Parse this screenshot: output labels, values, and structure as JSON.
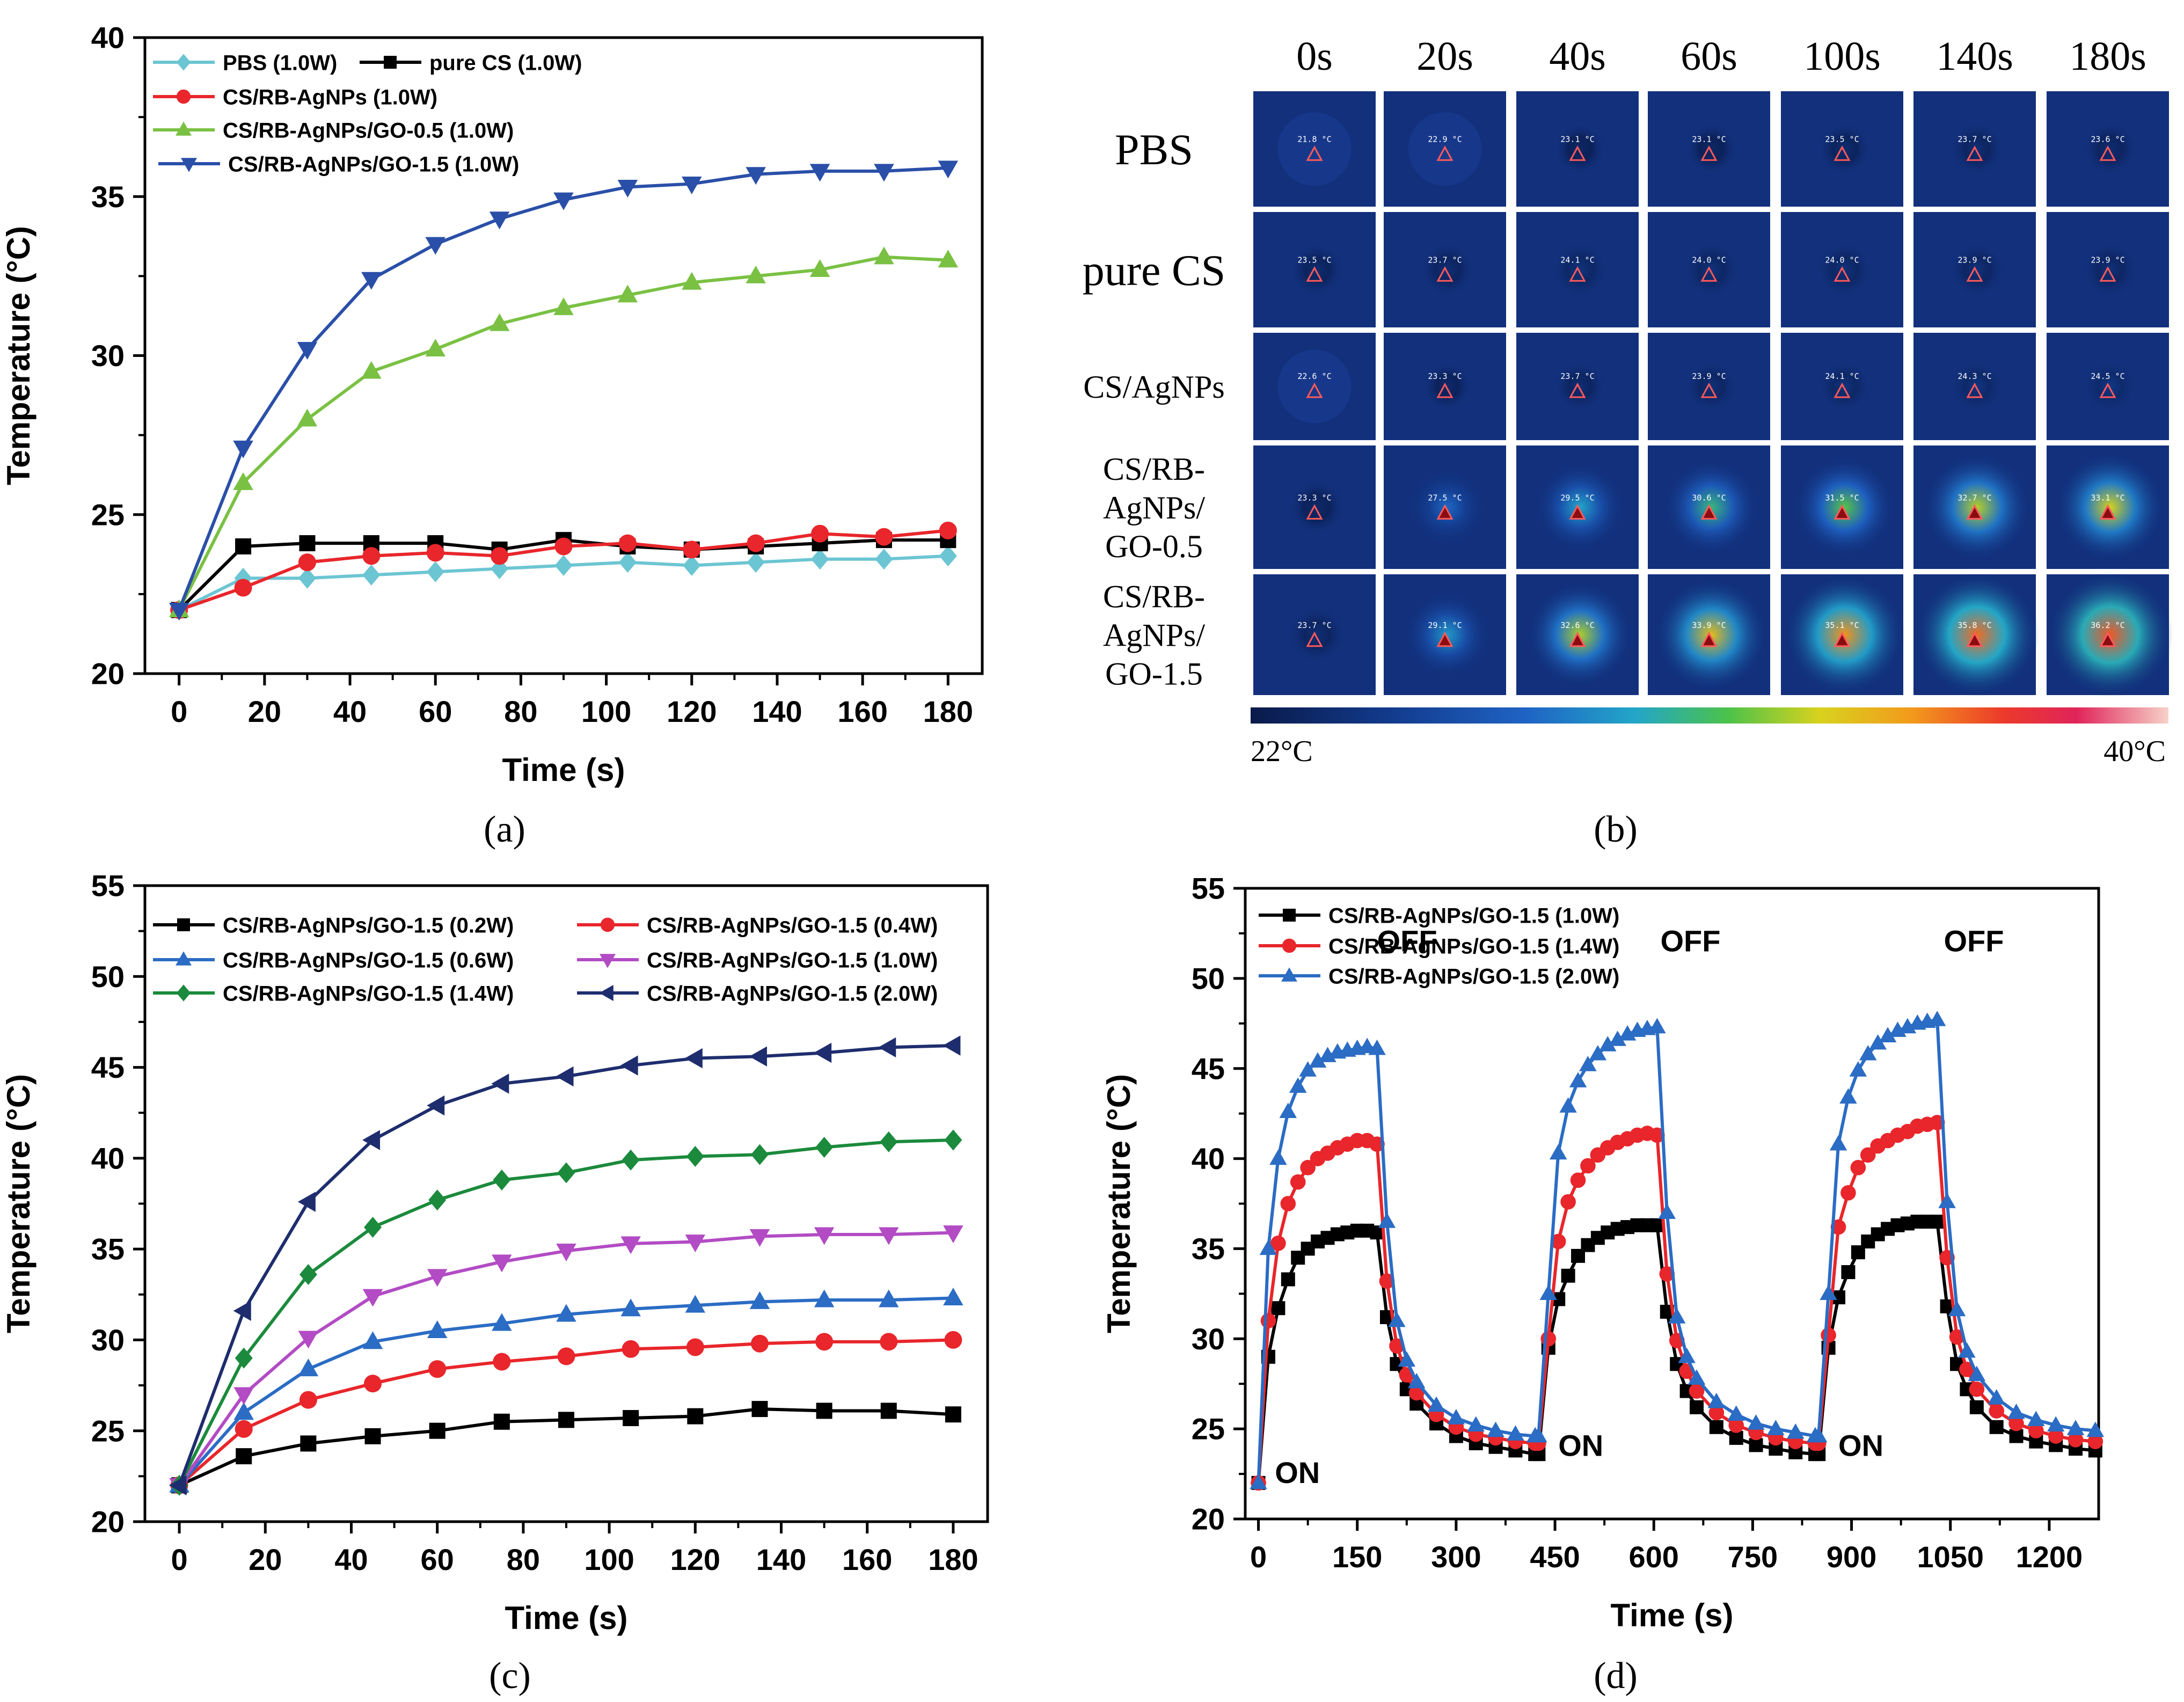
{
  "panels": {
    "a": "(a)",
    "b": "(b)",
    "c": "(c)",
    "d": "(d)"
  },
  "chart_data": [
    {
      "id": "a",
      "type": "line",
      "xlabel": "Time (s)",
      "ylabel": "Temperature (°C)",
      "xlim": [
        -8,
        188
      ],
      "ylim": [
        20,
        40
      ],
      "xticks": [
        0,
        20,
        40,
        60,
        80,
        100,
        120,
        140,
        160,
        180
      ],
      "yticks": [
        20,
        25,
        30,
        35,
        40
      ],
      "legend_position": "top-left",
      "x": [
        0,
        15,
        30,
        45,
        60,
        75,
        90,
        105,
        120,
        135,
        150,
        165,
        180
      ],
      "series": [
        {
          "name": "PBS (1.0W)",
          "color": "#6cc5d3",
          "marker": "diamond",
          "values": [
            22.0,
            23.0,
            23.0,
            23.1,
            23.2,
            23.3,
            23.4,
            23.5,
            23.4,
            23.5,
            23.6,
            23.6,
            23.7
          ]
        },
        {
          "name": "pure CS (1.0W)",
          "color": "#000000",
          "marker": "square",
          "values": [
            22.0,
            24.0,
            24.1,
            24.1,
            24.1,
            23.9,
            24.2,
            24.0,
            23.9,
            24.0,
            24.1,
            24.2,
            24.2
          ]
        },
        {
          "name": "CS/RB-AgNPs  (1.0W)",
          "color": "#e8262b",
          "marker": "circle",
          "values": [
            22.0,
            22.7,
            23.5,
            23.7,
            23.8,
            23.7,
            24.0,
            24.1,
            23.9,
            24.1,
            24.4,
            24.3,
            24.5
          ]
        },
        {
          "name": "CS/RB-AgNPs/GO-0.5 (1.0W)",
          "color": "#7ac143",
          "marker": "triangle-up",
          "values": [
            22.0,
            26.0,
            28.0,
            29.5,
            30.2,
            31.0,
            31.5,
            31.9,
            32.3,
            32.5,
            32.7,
            33.1,
            33.0
          ]
        },
        {
          "name": "CS/RB-AgNPs/GO-1.5 (1.0W)",
          "color": "#2a4fa8",
          "marker": "triangle-down",
          "values": [
            22.0,
            27.1,
            30.2,
            32.4,
            33.5,
            34.3,
            34.9,
            35.3,
            35.4,
            35.7,
            35.8,
            35.8,
            35.9
          ]
        }
      ]
    },
    {
      "id": "c",
      "type": "line",
      "xlabel": "Time (s)",
      "ylabel": "Temperature (°C)",
      "xlim": [
        -8,
        188
      ],
      "ylim": [
        20,
        55
      ],
      "xticks": [
        0,
        20,
        40,
        60,
        80,
        100,
        120,
        140,
        160,
        180
      ],
      "yticks": [
        20,
        25,
        30,
        35,
        40,
        45,
        50,
        55
      ],
      "legend_position": "top",
      "x": [
        0,
        15,
        30,
        45,
        60,
        75,
        90,
        105,
        120,
        135,
        150,
        165,
        180
      ],
      "series": [
        {
          "name": "CS/RB-AgNPs/GO-1.5 (0.2W)",
          "color": "#000000",
          "marker": "square",
          "values": [
            22.0,
            23.6,
            24.3,
            24.7,
            25.0,
            25.5,
            25.6,
            25.7,
            25.8,
            26.2,
            26.1,
            26.1,
            25.9
          ]
        },
        {
          "name": "CS/RB-AgNPs/GO-1.5 (0.4W)",
          "color": "#e8262b",
          "marker": "circle",
          "values": [
            22.0,
            25.1,
            26.7,
            27.6,
            28.4,
            28.8,
            29.1,
            29.5,
            29.6,
            29.8,
            29.9,
            29.9,
            30.0
          ]
        },
        {
          "name": "CS/RB-AgNPs/GO-1.5 (0.6W)",
          "color": "#2b6cc4",
          "marker": "triangle-up",
          "values": [
            22.0,
            26.0,
            28.4,
            29.9,
            30.5,
            30.9,
            31.4,
            31.7,
            31.9,
            32.1,
            32.2,
            32.2,
            32.3
          ]
        },
        {
          "name": "CS/RB-AgNPs/GO-1.5 (1.0W)",
          "color": "#b24bc4",
          "marker": "triangle-down",
          "values": [
            22.0,
            27.0,
            30.1,
            32.4,
            33.5,
            34.3,
            34.9,
            35.3,
            35.4,
            35.7,
            35.8,
            35.8,
            35.9
          ]
        },
        {
          "name": "CS/RB-AgNPs/GO-1.5 (1.4W)",
          "color": "#1b8a3c",
          "marker": "diamond",
          "values": [
            22.0,
            29.0,
            33.6,
            36.2,
            37.7,
            38.8,
            39.2,
            39.9,
            40.1,
            40.2,
            40.6,
            40.9,
            41.0
          ]
        },
        {
          "name": "CS/RB-AgNPs/GO-1.5 (2.0W)",
          "color": "#1e2d6e",
          "marker": "triangle-left",
          "values": [
            22.0,
            31.6,
            37.6,
            41.0,
            42.9,
            44.1,
            44.5,
            45.1,
            45.5,
            45.6,
            45.8,
            46.1,
            46.2
          ]
        }
      ]
    },
    {
      "id": "d",
      "type": "line",
      "xlabel": "Time (s)",
      "ylabel": "Temperature (°C)",
      "xlim": [
        -20,
        1275
      ],
      "ylim": [
        20,
        55
      ],
      "xticks": [
        0,
        150,
        300,
        450,
        600,
        750,
        900,
        1050,
        1200
      ],
      "yticks": [
        20,
        25,
        30,
        35,
        40,
        45,
        50,
        55
      ],
      "legend_position": "top-left",
      "annotations": [
        {
          "text": "ON",
          "x": 25,
          "y": 22.0
        },
        {
          "text": "OFF",
          "x": 180,
          "y": 51.5
        },
        {
          "text": "ON",
          "x": 455,
          "y": 23.5
        },
        {
          "text": "OFF",
          "x": 610,
          "y": 51.5
        },
        {
          "text": "ON",
          "x": 880,
          "y": 23.5
        },
        {
          "text": "OFF",
          "x": 1040,
          "y": 51.5
        }
      ],
      "cycle_x": [
        0,
        15,
        30,
        45,
        60,
        75,
        90,
        105,
        120,
        135,
        150,
        165,
        180,
        195,
        210,
        225,
        240,
        270,
        300,
        330,
        360,
        390,
        420
      ],
      "cycle_offsets": [
        0,
        425,
        850
      ],
      "series": [
        {
          "name": "CS/RB-AgNPs/GO-1.5 (1.0W)",
          "color": "#000000",
          "marker": "square",
          "cycles": [
            [
              22.0,
              29.0,
              31.7,
              33.3,
              34.5,
              35.0,
              35.4,
              35.6,
              35.8,
              35.9,
              36.0,
              36.0,
              35.9,
              31.2,
              28.6,
              27.2,
              26.4,
              25.3,
              24.6,
              24.2,
              24.0,
              23.8,
              23.6
            ],
            [
              23.6,
              29.5,
              32.2,
              33.5,
              34.6,
              35.2,
              35.6,
              35.9,
              36.1,
              36.2,
              36.3,
              36.3,
              36.3,
              31.5,
              28.6,
              27.1,
              26.2,
              25.1,
              24.5,
              24.1,
              23.9,
              23.7,
              23.6
            ],
            [
              23.6,
              29.5,
              32.3,
              33.7,
              34.8,
              35.4,
              35.8,
              36.1,
              36.3,
              36.4,
              36.5,
              36.5,
              36.5,
              31.8,
              28.6,
              27.2,
              26.2,
              25.1,
              24.6,
              24.3,
              24.1,
              23.9,
              23.8
            ]
          ]
        },
        {
          "name": "CS/RB-AgNPs/GO-1.5 (1.4W)",
          "color": "#e8262b",
          "marker": "circle",
          "cycles": [
            [
              22.0,
              31.0,
              35.3,
              37.5,
              38.7,
              39.5,
              40.0,
              40.3,
              40.6,
              40.8,
              41.0,
              41.0,
              40.8,
              33.2,
              29.6,
              28.0,
              27.0,
              25.8,
              25.1,
              24.7,
              24.5,
              24.3,
              24.2
            ],
            [
              24.2,
              30.0,
              35.4,
              37.6,
              38.8,
              39.6,
              40.2,
              40.6,
              40.9,
              41.1,
              41.3,
              41.4,
              41.3,
              33.6,
              29.9,
              28.2,
              27.1,
              25.9,
              25.2,
              24.8,
              24.5,
              24.3,
              24.2
            ],
            [
              24.2,
              30.2,
              36.2,
              38.1,
              39.5,
              40.2,
              40.7,
              41.0,
              41.3,
              41.5,
              41.8,
              41.9,
              42.0,
              34.5,
              30.1,
              28.3,
              27.2,
              26.0,
              25.3,
              24.9,
              24.6,
              24.4,
              24.3
            ]
          ]
        },
        {
          "name": "CS/RB-AgNPs/GO-1.5 (2.0W)",
          "color": "#2b6cc4",
          "marker": "triangle-up",
          "cycles": [
            [
              22.0,
              35.0,
              40.0,
              42.6,
              44.0,
              44.9,
              45.4,
              45.7,
              45.9,
              46.0,
              46.1,
              46.2,
              46.1,
              36.5,
              31.0,
              28.8,
              27.6,
              26.3,
              25.6,
              25.2,
              24.9,
              24.7,
              24.6
            ],
            [
              24.6,
              32.5,
              40.3,
              42.9,
              44.3,
              45.2,
              45.8,
              46.3,
              46.6,
              46.9,
              47.1,
              47.2,
              47.3,
              37.0,
              31.2,
              29.0,
              27.8,
              26.5,
              25.8,
              25.3,
              25.0,
              24.8,
              24.6
            ],
            [
              24.6,
              32.5,
              40.8,
              43.4,
              44.9,
              45.8,
              46.4,
              46.8,
              47.1,
              47.3,
              47.5,
              47.6,
              47.7,
              37.6,
              31.6,
              29.3,
              28.0,
              26.7,
              25.9,
              25.5,
              25.2,
              25.0,
              24.9
            ]
          ]
        }
      ]
    },
    {
      "id": "b",
      "type": "heatmap",
      "title": "",
      "time_labels": [
        "0s",
        "20s",
        "40s",
        "60s",
        "100s",
        "140s",
        "180s"
      ],
      "row_labels": [
        [
          "PBS"
        ],
        [
          "pure CS"
        ],
        [
          "CS/AgNPs"
        ],
        [
          "CS/RB-",
          "AgNPs/",
          "GO-0.5"
        ],
        [
          "CS/RB-",
          "AgNPs/",
          "GO-1.5"
        ]
      ],
      "scale_min_label": "22°C",
      "scale_max_label": "40°C",
      "scale_min": 22,
      "scale_max": 40,
      "cells": [
        [
          {
            "t": 21.8
          },
          {
            "t": 22.9
          },
          {
            "t": 23.1
          },
          {
            "t": 23.1
          },
          {
            "t": 23.5
          },
          {
            "t": 23.7
          },
          {
            "t": 23.6
          }
        ],
        [
          {
            "t": 23.5
          },
          {
            "t": 23.7
          },
          {
            "t": 24.1
          },
          {
            "t": 24.0
          },
          {
            "t": 24.0
          },
          {
            "t": 23.9
          },
          {
            "t": 23.9
          }
        ],
        [
          {
            "t": 22.6
          },
          {
            "t": 23.3
          },
          {
            "t": 23.7
          },
          {
            "t": 23.9
          },
          {
            "t": 24.1
          },
          {
            "t": 24.3
          },
          {
            "t": 24.5
          }
        ],
        [
          {
            "t": 23.3
          },
          {
            "t": 27.5
          },
          {
            "t": 29.5
          },
          {
            "t": 30.6
          },
          {
            "t": 31.5
          },
          {
            "t": 32.7
          },
          {
            "t": 33.1
          }
        ],
        [
          {
            "t": 23.7
          },
          {
            "t": 29.1
          },
          {
            "t": 32.6
          },
          {
            "t": 33.9
          },
          {
            "t": 35.1
          },
          {
            "t": 35.8
          },
          {
            "t": 36.2
          }
        ]
      ],
      "cell_readouts": [
        [
          "21.8 °C",
          "22.9 °C",
          "23.1 °C",
          "23.1 °C",
          "23.5 °C",
          "23.7 °C",
          "23.6 °C"
        ],
        [
          "23.5 °C",
          "23.7 °C",
          "24.1 °C",
          "24.0 °C",
          "24.0 °C",
          "23.9 °C",
          "23.9 °C"
        ],
        [
          "22.6 °C",
          "23.3 °C",
          "23.7 °C",
          "23.9 °C",
          "24.1 °C",
          "24.3 °C",
          "24.5 °C"
        ],
        [
          "23.3 °C",
          "27.5 °C",
          "29.5 °C",
          "30.6 °C",
          "31.5 °C",
          "32.7 °C",
          "33.1 °C"
        ],
        [
          "23.7 °C",
          "29.1 °C",
          "32.6 °C",
          "33.9 °C",
          "35.1 °C",
          "35.8 °C",
          "36.2 °C"
        ]
      ]
    }
  ]
}
